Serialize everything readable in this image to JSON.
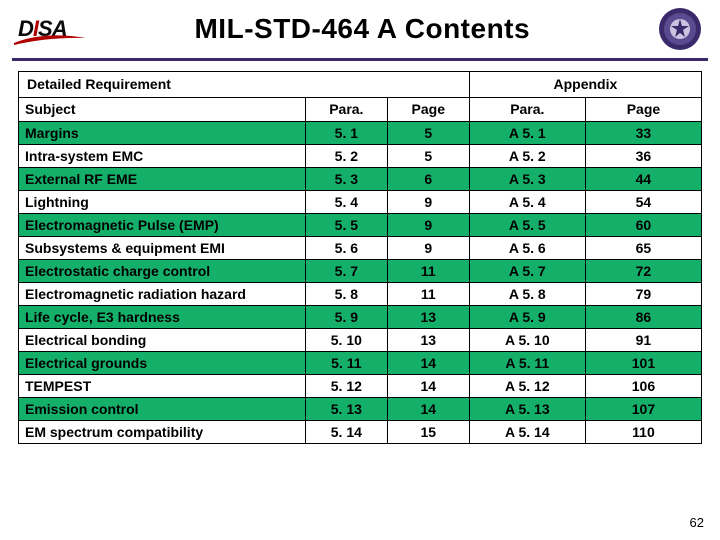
{
  "colors": {
    "rule": "#3b2a6b",
    "band_green": "#14b06a",
    "band_white": "#ffffff",
    "text": "#000000",
    "logo_red": "#b00000"
  },
  "header": {
    "logo_text_d": "D",
    "logo_text_i": "I",
    "logo_text_sa": "SA",
    "title": "MIL-STD-464 A Contents",
    "seal_alt": "department-seal"
  },
  "table": {
    "group_left": "Detailed Requirement",
    "group_right": "Appendix",
    "columns": {
      "subject": "Subject",
      "para1": "Para.",
      "page1": "Page",
      "para2": "Para.",
      "page2": "Page"
    },
    "rows": [
      {
        "subject": "Margins",
        "para1": "5. 1",
        "page1": "5",
        "para2": "A 5. 1",
        "page2": "33"
      },
      {
        "subject": "Intra-system EMC",
        "para1": "5. 2",
        "page1": "5",
        "para2": "A 5. 2",
        "page2": "36"
      },
      {
        "subject": "External RF EME",
        "para1": "5. 3",
        "page1": "6",
        "para2": "A 5. 3",
        "page2": "44"
      },
      {
        "subject": "Lightning",
        "para1": "5. 4",
        "page1": "9",
        "para2": "A 5. 4",
        "page2": "54"
      },
      {
        "subject": "Electromagnetic Pulse (EMP)",
        "para1": "5. 5",
        "page1": "9",
        "para2": "A 5. 5",
        "page2": "60"
      },
      {
        "subject": "Subsystems & equipment EMI",
        "para1": "5. 6",
        "page1": "9",
        "para2": "A 5. 6",
        "page2": "65"
      },
      {
        "subject": "Electrostatic charge control",
        "para1": "5. 7",
        "page1": "11",
        "para2": "A 5. 7",
        "page2": "72"
      },
      {
        "subject": "Electromagnetic radiation hazard",
        "para1": "5. 8",
        "page1": "11",
        "para2": "A 5. 8",
        "page2": "79"
      },
      {
        "subject": "Life cycle, E3 hardness",
        "para1": "5. 9",
        "page1": "13",
        "para2": "A 5. 9",
        "page2": "86"
      },
      {
        "subject": "Electrical bonding",
        "para1": "5. 10",
        "page1": "13",
        "para2": "A 5. 10",
        "page2": "91"
      },
      {
        "subject": "Electrical grounds",
        "para1": "5. 11",
        "page1": "14",
        "para2": "A 5. 11",
        "page2": "101"
      },
      {
        "subject": "TEMPEST",
        "para1": "5. 12",
        "page1": "14",
        "para2": "A 5. 12",
        "page2": "106"
      },
      {
        "subject": "Emission control",
        "para1": "5. 13",
        "page1": "14",
        "para2": "A 5. 13",
        "page2": "107"
      },
      {
        "subject": "EM spectrum compatibility",
        "para1": "5. 14",
        "page1": "15",
        "para2": "A 5. 14",
        "page2": "110"
      }
    ]
  },
  "page_number": "62"
}
